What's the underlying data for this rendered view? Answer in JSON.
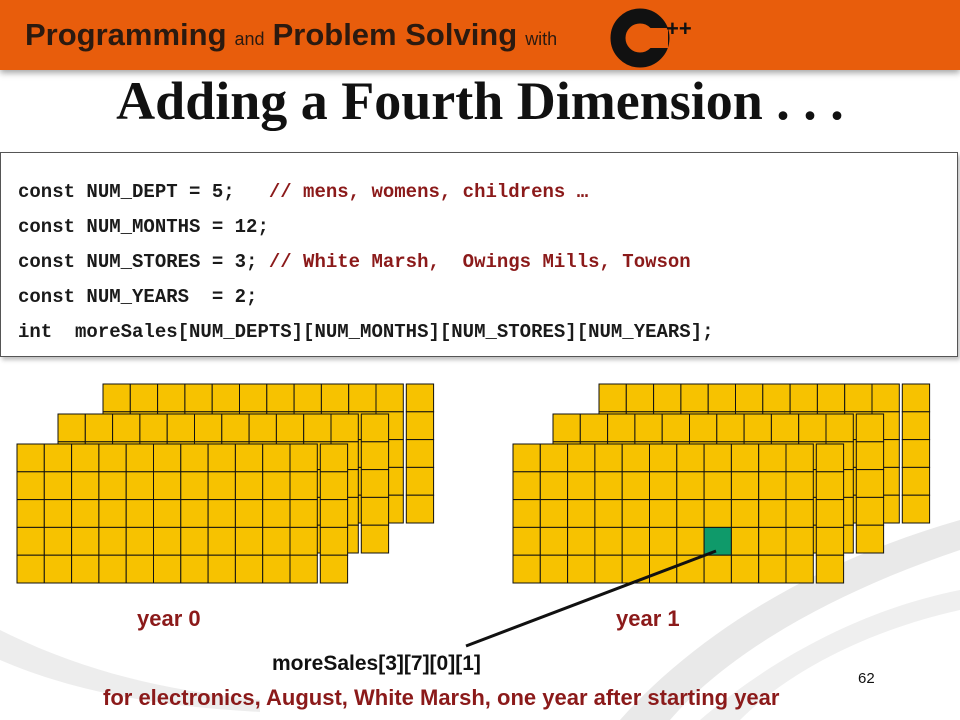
{
  "banner": {
    "word1": "Programming",
    "word2": "and",
    "word3": "Problem Solving",
    "word4": "with",
    "logo_letter": "C",
    "logo_suffix": "++"
  },
  "title": "Adding a Fourth Dimension . . .",
  "code": [
    {
      "code": "const NUM_DEPT = 5;   ",
      "comment": "// mens, womens, childrens …"
    },
    {
      "code": "const NUM_MONTHS = 12;",
      "comment": ""
    },
    {
      "code": "const NUM_STORES = 3; ",
      "comment": "// White Marsh,  Owings Mills, Towson"
    },
    {
      "code": "const NUM_YEARS  = 2;",
      "comment": ""
    },
    {
      "code": "int  moreSales[NUM_DEPTS][NUM_MONTHS][NUM_STORES][NUM_YEARS];",
      "comment": ""
    }
  ],
  "diagram": {
    "year_labels": [
      "year 0",
      "year 1"
    ],
    "highlighted_element": "moreSales[3][7][0][1]",
    "caption": "for electronics, August, White Marsh, one year after starting year",
    "cell_color": "#f7c200",
    "highlight_color": "#0f9a6a"
  },
  "slide_number": "62"
}
